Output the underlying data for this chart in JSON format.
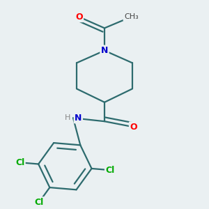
{
  "background_color": "#eaf0f2",
  "bond_color": "#2d6b6e",
  "atom_colors": {
    "N": "#0000cc",
    "O": "#ff0000",
    "Cl": "#00aa00",
    "C": "#2d6b6e",
    "H": "#888888"
  },
  "bond_width": 1.6,
  "figsize": [
    3.0,
    3.0
  ],
  "dpi": 100
}
